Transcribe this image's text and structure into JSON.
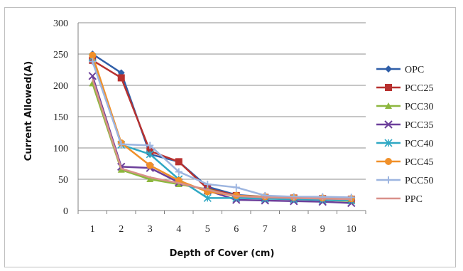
{
  "chart_data": {
    "type": "line",
    "title": "",
    "xlabel": "Depth of Cover (cm)",
    "ylabel": "Current Allowed(A)",
    "ylim": [
      0,
      300
    ],
    "yticks": [
      0,
      50,
      100,
      150,
      200,
      250,
      300
    ],
    "x": [
      1,
      2,
      3,
      4,
      5,
      6,
      7,
      8,
      9,
      10
    ],
    "grid": "horizontal",
    "legend": "right",
    "series": [
      {
        "name": "OPC",
        "color": "#2f5ea8",
        "marker": "diamond",
        "values": [
          250,
          220,
          90,
          78,
          38,
          25,
          22,
          20,
          19,
          18
        ]
      },
      {
        "name": "PCC25",
        "color": "#b8312f",
        "marker": "square",
        "values": [
          240,
          212,
          95,
          78,
          35,
          24,
          21,
          20,
          19,
          18
        ]
      },
      {
        "name": "PCC30",
        "color": "#8db73f",
        "marker": "triangle",
        "values": [
          203,
          65,
          50,
          42,
          34,
          22,
          20,
          18,
          17,
          15
        ]
      },
      {
        "name": "PCC35",
        "color": "#6c3f9a",
        "marker": "x",
        "values": [
          215,
          70,
          68,
          45,
          32,
          17,
          16,
          15,
          14,
          12
        ]
      },
      {
        "name": "PCC40",
        "color": "#2fa8c4",
        "marker": "star",
        "values": [
          245,
          105,
          90,
          50,
          20,
          20,
          19,
          18,
          17,
          16
        ]
      },
      {
        "name": "PCC45",
        "color": "#f0902a",
        "marker": "circle",
        "values": [
          248,
          108,
          72,
          48,
          30,
          24,
          22,
          21,
          20,
          19
        ]
      },
      {
        "name": "PCC50",
        "color": "#9db5e0",
        "marker": "plus",
        "values": [
          238,
          106,
          104,
          62,
          42,
          37,
          24,
          22,
          22,
          21
        ]
      },
      {
        "name": "PPC",
        "color": "#d9908a",
        "marker": "none",
        "values": [
          210,
          67,
          53,
          44,
          33,
          23,
          21,
          20,
          19,
          18
        ]
      }
    ]
  }
}
